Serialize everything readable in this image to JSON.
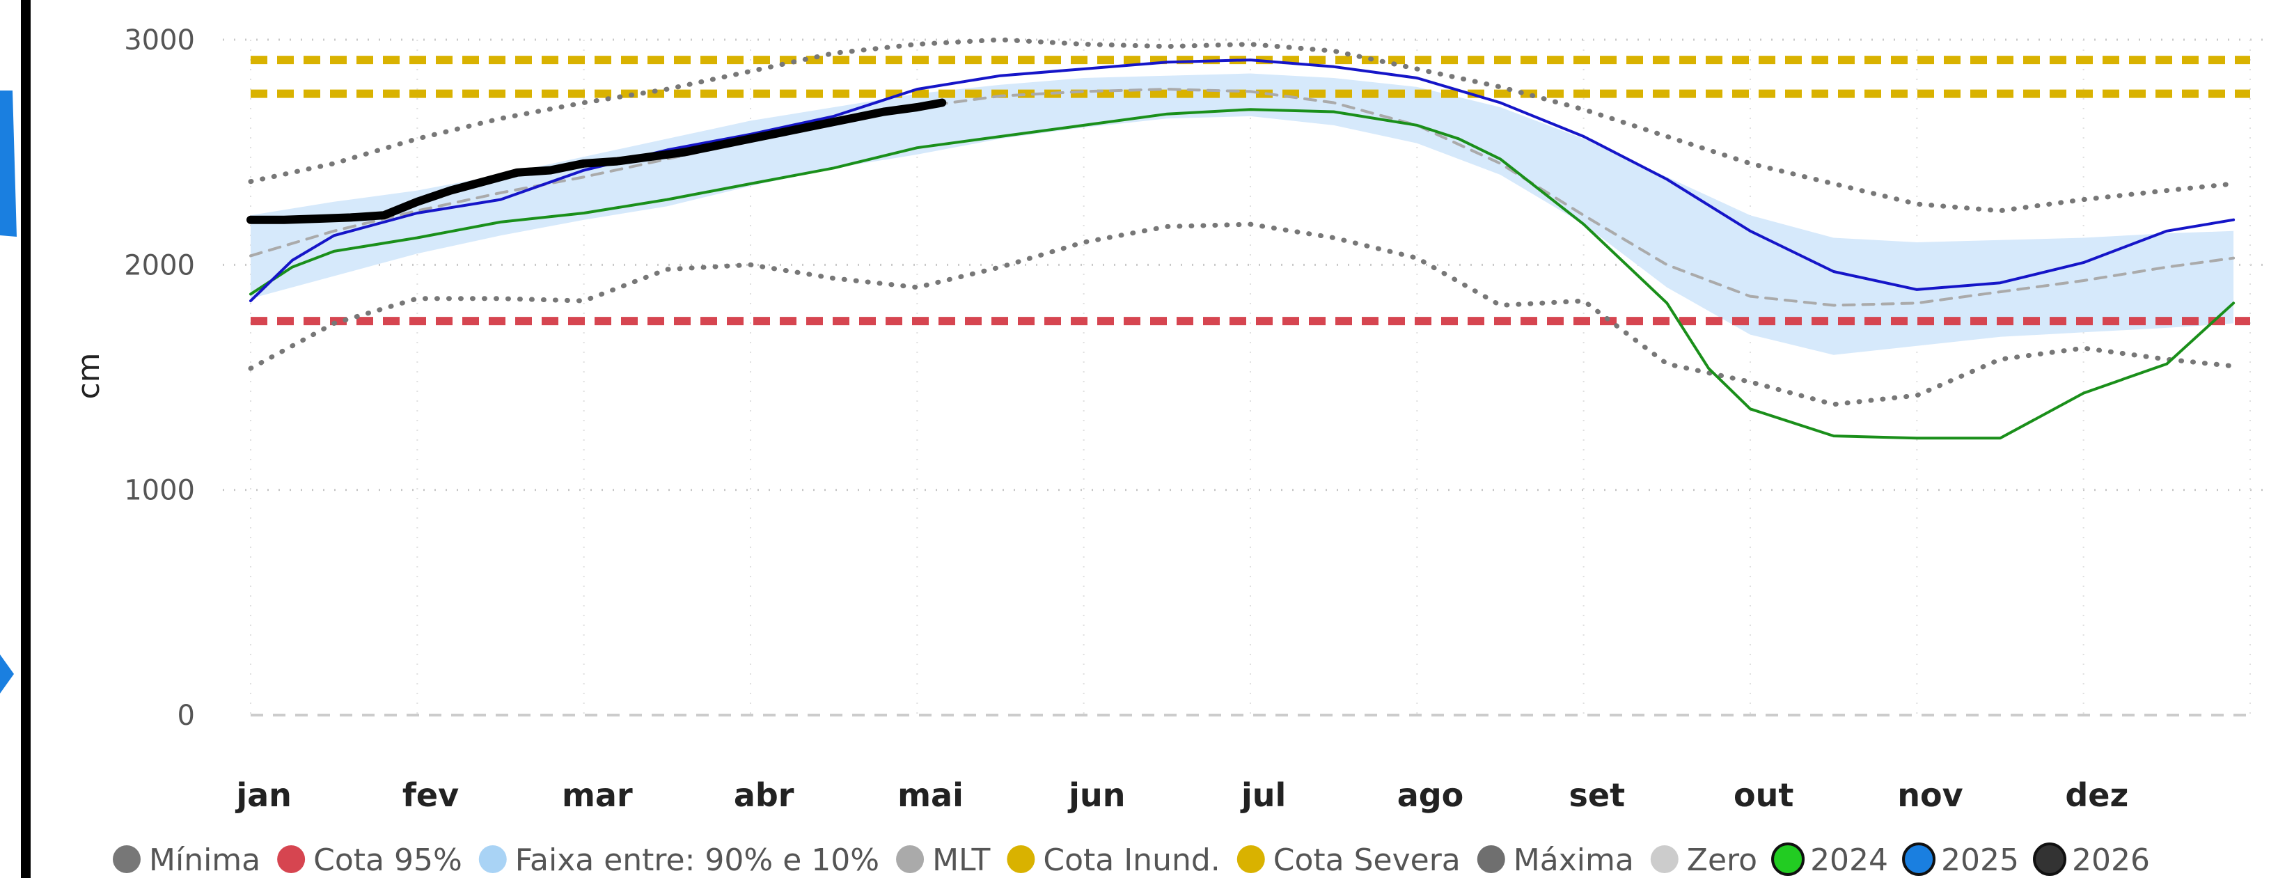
{
  "chart_data": {
    "type": "line",
    "ylabel": "cm",
    "ylim": [
      0,
      3000
    ],
    "yticks": [
      0,
      1000,
      2000,
      3000
    ],
    "months": [
      "jan",
      "fev",
      "mar",
      "abr",
      "mai",
      "jun",
      "jul",
      "ago",
      "set",
      "out",
      "nov",
      "dez"
    ],
    "grid": true,
    "legend_position": "bottom",
    "thresholds": [
      {
        "name": "Cota 95%",
        "value": 1750,
        "color": "#d64550"
      },
      {
        "name": "Cota Inund.",
        "value": 2760,
        "color": "#d9b200"
      },
      {
        "name": "Cota Severa",
        "value": 2910,
        "color": "#d9b200"
      },
      {
        "name": "Zero",
        "value": 0,
        "color": "#cccccc"
      }
    ],
    "band": {
      "name": "Faixa entre:   90% e 10%",
      "x": [
        0.0,
        0.5,
        1.0,
        1.5,
        2.0,
        2.5,
        3.0,
        3.5,
        4.0,
        4.5,
        5.0,
        5.5,
        6.0,
        6.5,
        7.0,
        7.5,
        8.0,
        8.5,
        9.0,
        9.5,
        10.0,
        10.5,
        11.0,
        11.5,
        11.9
      ],
      "upper": [
        2220,
        2280,
        2330,
        2400,
        2480,
        2560,
        2640,
        2700,
        2760,
        2800,
        2830,
        2840,
        2850,
        2830,
        2790,
        2700,
        2560,
        2390,
        2220,
        2120,
        2100,
        2110,
        2120,
        2140,
        2150
      ],
      "lower": [
        1850,
        1950,
        2050,
        2130,
        2200,
        2260,
        2350,
        2430,
        2490,
        2560,
        2610,
        2650,
        2660,
        2620,
        2540,
        2400,
        2180,
        1900,
        1690,
        1600,
        1640,
        1680,
        1700,
        1720,
        1740
      ]
    },
    "series": [
      {
        "name": "Mínima",
        "color": "#777777",
        "style": "dotted",
        "x": [
          0.0,
          0.5,
          1.0,
          1.5,
          2.0,
          2.5,
          3.0,
          3.5,
          4.0,
          4.5,
          5.0,
          5.5,
          6.0,
          6.5,
          7.0,
          7.5,
          8.0,
          8.5,
          9.0,
          9.5,
          10.0,
          10.5,
          11.0,
          11.5,
          11.9
        ],
        "y": [
          1540,
          1740,
          1850,
          1850,
          1840,
          1980,
          2000,
          1940,
          1900,
          1990,
          2100,
          2170,
          2180,
          2120,
          2030,
          1820,
          1840,
          1560,
          1480,
          1380,
          1420,
          1580,
          1630,
          1580,
          1550
        ]
      },
      {
        "name": "Máxima",
        "color": "#777777",
        "style": "dotted",
        "x": [
          0.0,
          0.5,
          1.0,
          1.5,
          2.0,
          2.5,
          3.0,
          3.5,
          4.0,
          4.5,
          5.0,
          5.5,
          6.0,
          6.5,
          7.0,
          7.5,
          8.0,
          8.5,
          9.0,
          9.5,
          10.0,
          10.5,
          11.0,
          11.5,
          11.9
        ],
        "y": [
          2370,
          2450,
          2560,
          2650,
          2720,
          2780,
          2860,
          2940,
          2980,
          3000,
          2980,
          2970,
          2980,
          2950,
          2870,
          2790,
          2690,
          2570,
          2450,
          2360,
          2270,
          2240,
          2290,
          2330,
          2360
        ]
      },
      {
        "name": "MLT",
        "color": "#aaaaaa",
        "style": "dashed",
        "x": [
          0.0,
          0.5,
          1.0,
          1.5,
          2.0,
          2.5,
          3.0,
          3.5,
          4.0,
          4.5,
          5.0,
          5.5,
          6.0,
          6.5,
          7.0,
          7.5,
          8.0,
          8.5,
          9.0,
          9.5,
          10.0,
          10.5,
          11.0,
          11.5,
          11.9
        ],
        "y": [
          2040,
          2150,
          2240,
          2320,
          2390,
          2470,
          2550,
          2630,
          2700,
          2750,
          2770,
          2780,
          2770,
          2720,
          2620,
          2450,
          2220,
          2000,
          1860,
          1820,
          1830,
          1880,
          1930,
          1990,
          2030
        ]
      },
      {
        "name": "2024",
        "color": "#1a8f1a",
        "style": "solid",
        "x": [
          0.0,
          0.25,
          0.5,
          1.0,
          1.5,
          2.0,
          2.5,
          3.0,
          3.5,
          4.0,
          4.5,
          5.0,
          5.5,
          6.0,
          6.5,
          7.0,
          7.25,
          7.5,
          8.0,
          8.5,
          8.75,
          9.0,
          9.5,
          10.0,
          10.5,
          11.0,
          11.5,
          11.9
        ],
        "y": [
          1870,
          1990,
          2060,
          2120,
          2190,
          2230,
          2290,
          2360,
          2430,
          2520,
          2570,
          2620,
          2670,
          2690,
          2680,
          2620,
          2560,
          2470,
          2180,
          1830,
          1540,
          1360,
          1240,
          1230,
          1230,
          1430,
          1560,
          1830
        ]
      },
      {
        "name": "2025",
        "color": "#1515c8",
        "style": "solid",
        "x": [
          0.0,
          0.25,
          0.5,
          1.0,
          1.5,
          2.0,
          2.5,
          3.0,
          3.5,
          4.0,
          4.5,
          5.0,
          5.5,
          6.0,
          6.5,
          7.0,
          7.5,
          8.0,
          8.5,
          9.0,
          9.5,
          10.0,
          10.5,
          11.0,
          11.5,
          11.9
        ],
        "y": [
          1840,
          2020,
          2130,
          2230,
          2290,
          2420,
          2510,
          2580,
          2660,
          2780,
          2840,
          2870,
          2900,
          2910,
          2880,
          2830,
          2720,
          2570,
          2380,
          2150,
          1970,
          1890,
          1920,
          2010,
          2150,
          2200
        ]
      },
      {
        "name": "2026",
        "color": "#000000",
        "style": "thick",
        "x": [
          0.0,
          0.2,
          0.4,
          0.6,
          0.8,
          1.0,
          1.2,
          1.4,
          1.6,
          1.8,
          2.0,
          2.2,
          2.4,
          2.6,
          2.8,
          3.0,
          3.2,
          3.4,
          3.6,
          3.8,
          4.0,
          4.15
        ],
        "y": [
          2200,
          2200,
          2205,
          2210,
          2220,
          2280,
          2330,
          2370,
          2410,
          2420,
          2450,
          2460,
          2480,
          2500,
          2530,
          2560,
          2590,
          2620,
          2650,
          2680,
          2700,
          2720
        ]
      }
    ],
    "legend": [
      {
        "name": "Mínima",
        "color": "#777777",
        "marker": "dot"
      },
      {
        "name": "Cota 95%",
        "color": "#d64550",
        "marker": "dot"
      },
      {
        "name": "Faixa entre:   90% e 10%",
        "color": "#a9d3f5",
        "marker": "dot"
      },
      {
        "name": "MLT",
        "color": "#aaaaaa",
        "marker": "dot"
      },
      {
        "name": "Cota Inund.",
        "color": "#d9b200",
        "marker": "dot"
      },
      {
        "name": "Cota Severa",
        "color": "#d9b200",
        "marker": "dot"
      },
      {
        "name": "Máxima",
        "color": "#6f6f6f",
        "marker": "dot"
      },
      {
        "name": "Zero",
        "color": "#cccccc",
        "marker": "dot"
      },
      {
        "name": "2024",
        "color": "#22cc22",
        "marker": "ring"
      },
      {
        "name": "2025",
        "color": "#1a7fe0",
        "marker": "ring"
      },
      {
        "name": "2026",
        "color": "#333333",
        "marker": "ring"
      }
    ]
  }
}
